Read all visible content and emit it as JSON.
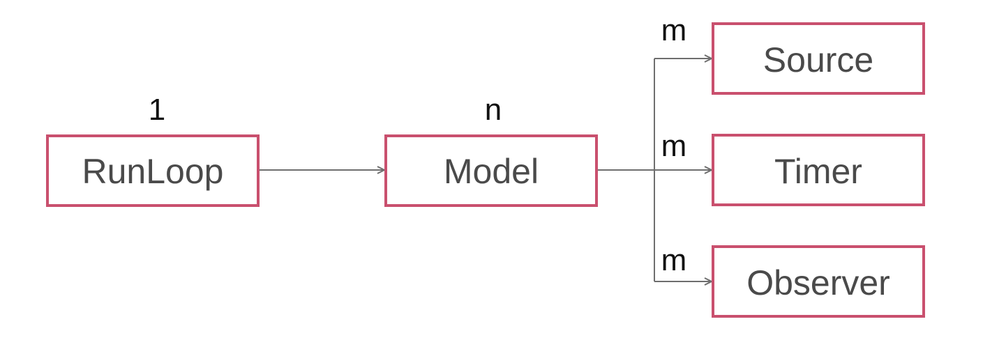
{
  "diagram": {
    "nodes": {
      "runloop": "RunLoop",
      "model": "Model",
      "source": "Source",
      "timer": "Timer",
      "observer": "Observer"
    },
    "multiplicities": {
      "runloop": "1",
      "model": "n",
      "source": "m",
      "timer": "m",
      "observer": "m"
    },
    "colors": {
      "box_border": "#c9506e",
      "node_text": "#4a4a4a",
      "edge": "#6e6e6e",
      "multiplicity_text": "#111111"
    }
  }
}
